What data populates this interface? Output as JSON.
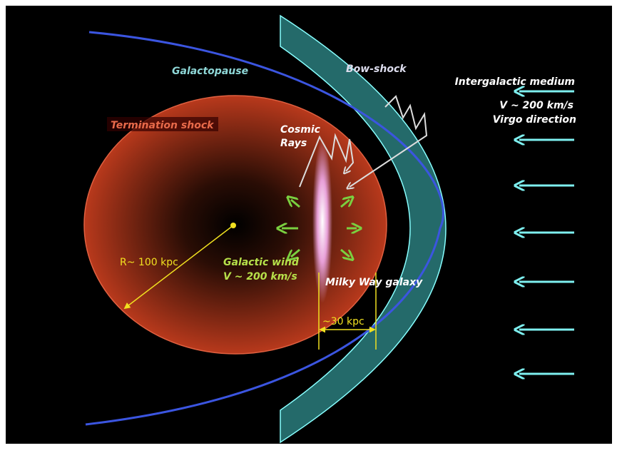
{
  "labels": {
    "galactopause": "Galactopause",
    "bow_shock": "Bow-shock",
    "intergalactic": [
      "Intergalactic medium",
      "V ~ 200 km/s",
      "Virgo direction"
    ],
    "termination_shock": "Termination shock",
    "cosmic_rays": [
      "Cosmic",
      "Rays"
    ],
    "galactic_wind": [
      "Galactic wind",
      "V ~ 200 km/s"
    ],
    "milky_way": "Milky Way galaxy",
    "radius": "R~ 100 kpc",
    "width": "~30 kpc"
  }
}
